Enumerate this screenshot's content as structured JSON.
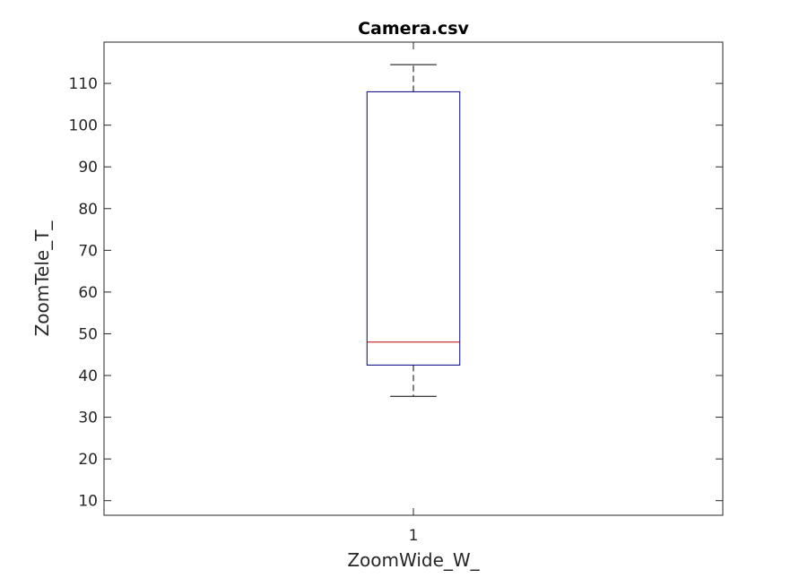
{
  "chart_data": {
    "type": "boxplot",
    "title": "Camera.csv",
    "xlabel": "ZoomWide_W_",
    "ylabel": "ZoomTele_T_",
    "ylim": [
      6.5,
      119.9
    ],
    "yticks": [
      10,
      20,
      30,
      40,
      50,
      60,
      70,
      80,
      90,
      100,
      110
    ],
    "categories": [
      "1"
    ],
    "boxes": [
      {
        "category": "1",
        "whisker_low": 35,
        "q1": 42.5,
        "median": 48,
        "q3": 108,
        "whisker_high": 114.5
      }
    ],
    "grid": false,
    "colors": {
      "box": "#00007f",
      "median": "#c00000",
      "whisker": "#000000",
      "axis": "#262626"
    }
  }
}
